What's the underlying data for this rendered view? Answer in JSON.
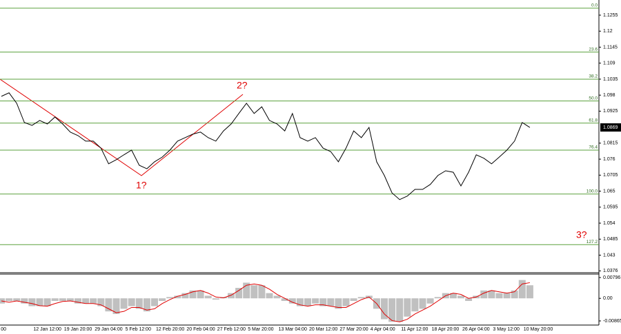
{
  "chart_data": [
    {
      "type": "line",
      "categories": [
        "00",
        null,
        null,
        null,
        "12 Jan 12:00",
        null,
        null,
        null,
        "19 Jan 20:00",
        null,
        null,
        null,
        "29 Jan 04:00",
        null,
        null,
        null,
        "5 Feb 12:00",
        null,
        null,
        null,
        "12 Feb 20:00",
        null,
        null,
        null,
        "20 Feb 04:00",
        null,
        null,
        null,
        "27 Feb 12:00",
        null,
        null,
        null,
        "5 Mar 20:00",
        null,
        null,
        null,
        "13 Mar 04:00",
        null,
        null,
        null,
        "20 Mar 12:00",
        null,
        null,
        null,
        "27 Mar 20:00",
        null,
        null,
        null,
        "4 Apr 04:00",
        null,
        null,
        null,
        "11 Apr 12:00",
        null,
        null,
        null,
        "18 Apr 20:00",
        null,
        null,
        null,
        "26 Apr 04:00",
        null,
        null,
        null,
        "3 May 12:00",
        null,
        null,
        null,
        "10 May 20:00",
        null
      ],
      "values": [
        1.0976,
        1.0988,
        1.0952,
        1.0886,
        1.0876,
        1.0893,
        1.0881,
        1.0905,
        1.0881,
        1.0853,
        1.0841,
        1.0822,
        1.0822,
        1.0798,
        1.0744,
        1.0758,
        1.0775,
        1.0791,
        1.0739,
        1.0727,
        1.0751,
        1.0767,
        1.0791,
        1.0822,
        1.0834,
        1.0846,
        1.0853,
        1.0834,
        1.0822,
        1.0857,
        1.0881,
        1.0917,
        1.0952,
        1.0917,
        1.094,
        1.0893,
        1.0881,
        1.0857,
        1.0917,
        1.0834,
        1.0822,
        1.0834,
        1.0798,
        1.0786,
        1.0751,
        1.0798,
        1.0857,
        1.0834,
        1.0869,
        1.0751,
        1.0704,
        1.0644,
        1.0621,
        1.0633,
        1.0656,
        1.0656,
        1.0673,
        1.0704,
        1.072,
        1.0715,
        1.0668,
        1.0715,
        1.0775,
        1.0763,
        1.0744,
        1.0767,
        1.0791,
        1.0822,
        1.0886,
        1.0869
      ],
      "color": "#000000",
      "ylim": [
        1.0372,
        1.13
      ],
      "yticks": [
        1.1255,
        1.12,
        1.1145,
        1.109,
        1.1035,
        1.098,
        1.0925,
        1.0815,
        1.076,
        1.0705,
        1.065,
        1.0595,
        1.054,
        1.0485,
        1.043,
        1.0376
      ],
      "current_price": 1.0869,
      "fib_color": "#5aa03c",
      "fib_levels": [
        {
          "value": 1.1279,
          "label": "0.0"
        },
        {
          "value": 1.1128,
          "label": "23.6"
        },
        {
          "value": 1.1035,
          "label": "38.2"
        },
        {
          "value": 1.096,
          "label": "50.0"
        },
        {
          "value": 1.0884,
          "label": "61.8"
        },
        {
          "value": 1.0791,
          "label": "76.4"
        },
        {
          "value": 1.064,
          "label": "100.0"
        },
        {
          "value": 1.0466,
          "label": "127.2"
        }
      ],
      "annotations": [
        "1?",
        "2?",
        "3?"
      ]
    },
    {
      "type": "bar",
      "values": [
        -0.002,
        -0.001,
        -0.001,
        -0.002,
        -0.003,
        -0.003,
        -0.003,
        -0.001,
        -0.001,
        -0.001,
        -0.002,
        -0.002,
        -0.002,
        -0.003,
        -0.005,
        -0.006,
        -0.004,
        -0.003,
        -0.004,
        -0.005,
        -0.003,
        -0.001,
        0.0005,
        0.001,
        0.002,
        0.003,
        0.003,
        0.001,
        -0.0005,
        0.0005,
        0.002,
        0.004,
        0.006,
        0.005,
        0.005,
        0.002,
        0.001,
        -0.001,
        -0.002,
        -0.003,
        -0.003,
        -0.002,
        -0.003,
        -0.003,
        -0.004,
        -0.003,
        -0.001,
        0.0005,
        0.001,
        -0.004,
        -0.008,
        -0.009,
        -0.009,
        -0.007,
        -0.005,
        -0.004,
        -0.002,
        0.0005,
        0.002,
        0.002,
        0.001,
        -0.001,
        0.001,
        0.003,
        0.003,
        0.002,
        0.002,
        0.003,
        0.007,
        0.005
      ],
      "color": "#c0c0c0",
      "signal": {
        "color": "#e00000",
        "values": [
          -0.001,
          -0.0015,
          -0.001,
          -0.0015,
          -0.002,
          -0.0028,
          -0.003,
          -0.002,
          -0.0012,
          -0.001,
          -0.0015,
          -0.002,
          -0.002,
          -0.0025,
          -0.004,
          -0.0055,
          -0.005,
          -0.0035,
          -0.0035,
          -0.0045,
          -0.004,
          -0.002,
          -0.0005,
          0.0008,
          0.0015,
          0.0025,
          0.003,
          0.002,
          0.0005,
          0.0002,
          0.0012,
          0.003,
          0.005,
          0.0055,
          0.005,
          0.0035,
          0.0015,
          0.0,
          -0.0015,
          -0.0025,
          -0.003,
          -0.0025,
          -0.0025,
          -0.003,
          -0.0035,
          -0.0035,
          -0.002,
          -0.0005,
          0.0005,
          -0.002,
          -0.006,
          -0.0085,
          -0.009,
          -0.008,
          -0.006,
          -0.0045,
          -0.003,
          -0.001,
          0.001,
          0.002,
          0.0015,
          0.0,
          0.0005,
          0.002,
          0.003,
          0.0025,
          0.002,
          0.0025,
          0.0055,
          0.006
        ]
      },
      "ylim": [
        -0.01023,
        0.00928
      ],
      "yticks": [
        0.00796,
        {
          "value": 0,
          "label": "0.00"
        },
        -0.00865
      ]
    }
  ]
}
